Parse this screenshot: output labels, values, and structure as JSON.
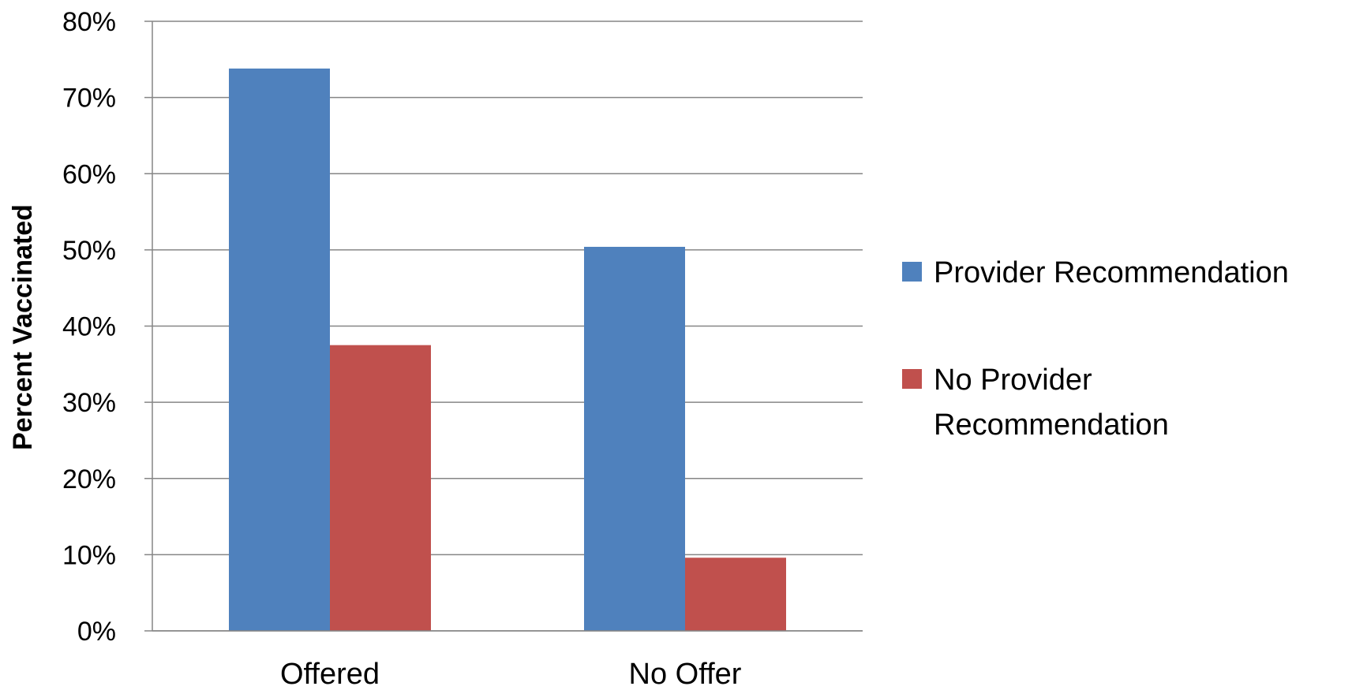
{
  "chart_data": {
    "type": "bar",
    "categories": [
      "Offered",
      "No Offer"
    ],
    "series": [
      {
        "name": "Provider Recommendation",
        "values": [
          73.8,
          50.4
        ],
        "color": "#4F81BD"
      },
      {
        "name": "No Provider Recommendation",
        "values": [
          37.5,
          9.6
        ],
        "color": "#C0504D"
      }
    ],
    "legend_lines": [
      [
        "Provider Recommendation"
      ],
      [
        "No Provider",
        "Recommendation"
      ]
    ],
    "ylabel": "Percent Vaccinated",
    "xlabel": "",
    "ylim": [
      0,
      80
    ],
    "yticks": [
      0,
      10,
      20,
      30,
      40,
      50,
      60,
      70,
      80
    ],
    "ytick_labels": [
      "0%",
      "10%",
      "20%",
      "30%",
      "40%",
      "50%",
      "60%",
      "70%",
      "80%"
    ],
    "grid": true,
    "legend_position": "right"
  }
}
